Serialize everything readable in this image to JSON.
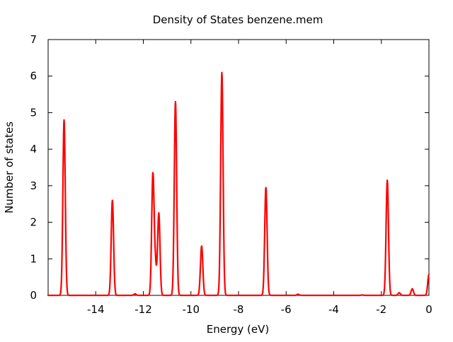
{
  "chart_data": {
    "type": "line",
    "title": "Density of States benzene.mem",
    "xlabel": "Energy (eV)",
    "ylabel": "Number of states",
    "xlim": [
      -16,
      0
    ],
    "ylim": [
      0,
      7
    ],
    "x_ticks": [
      -14,
      -12,
      -10,
      -8,
      -6,
      -4,
      -2,
      0
    ],
    "y_ticks": [
      0,
      1,
      2,
      3,
      4,
      5,
      6,
      7
    ],
    "grid": false,
    "legend": "none",
    "line_color": "#ff0000",
    "peaks": [
      {
        "x": -15.33,
        "y": 4.8
      },
      {
        "x": -13.3,
        "y": 2.6
      },
      {
        "x": -12.35,
        "y": 0.04
      },
      {
        "x": -11.6,
        "y": 3.25
      },
      {
        "x": -11.5,
        "y": 0.8
      },
      {
        "x": -11.35,
        "y": 2.25
      },
      {
        "x": -10.65,
        "y": 5.3
      },
      {
        "x": -9.55,
        "y": 1.35
      },
      {
        "x": -8.7,
        "y": 6.1
      },
      {
        "x": -6.85,
        "y": 2.95
      },
      {
        "x": -5.5,
        "y": 0.03
      },
      {
        "x": -2.8,
        "y": 0.01
      },
      {
        "x": -1.75,
        "y": 3.15
      },
      {
        "x": -1.25,
        "y": 0.07
      },
      {
        "x": -0.7,
        "y": 0.18
      },
      {
        "x": 0,
        "y": 0.57
      }
    ]
  }
}
